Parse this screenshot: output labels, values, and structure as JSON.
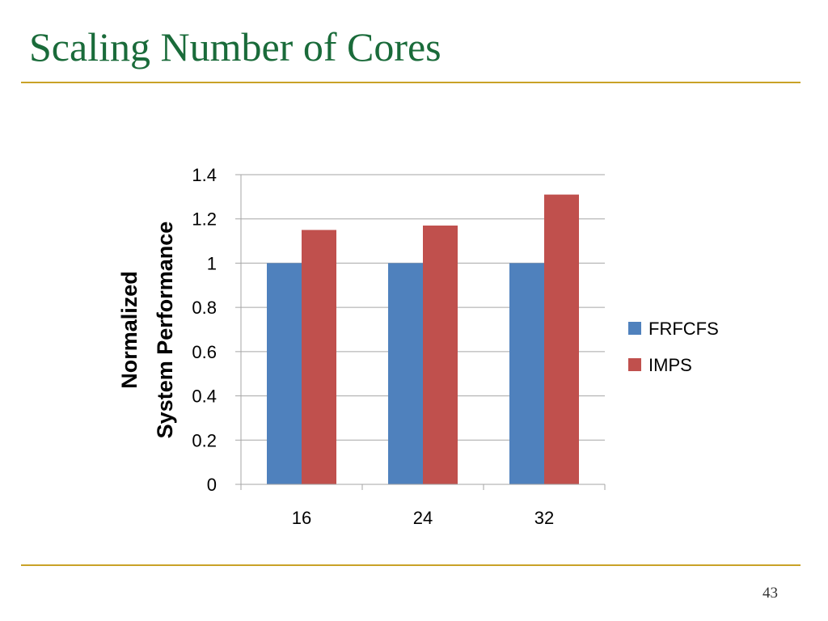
{
  "slide": {
    "title": "Scaling Number of Cores",
    "page_number": "43"
  },
  "colors": {
    "title": "#1a6b3a",
    "rule": "#c9a227",
    "FRFCFS": "#4f81bd",
    "IMPS": "#c0504d",
    "grid": "#a6a6a6"
  },
  "chart_data": {
    "type": "bar",
    "title": "",
    "xlabel": "",
    "ylabel": "Normalized System Performance",
    "ylabel_lines": [
      "Normalized",
      "System Performance"
    ],
    "categories": [
      "16",
      "24",
      "32"
    ],
    "series": [
      {
        "name": "FRFCFS",
        "values": [
          1.0,
          1.0,
          1.0
        ],
        "color": "#4f81bd"
      },
      {
        "name": "IMPS",
        "values": [
          1.15,
          1.17,
          1.31
        ],
        "color": "#c0504d"
      }
    ],
    "ylim": [
      0,
      1.4
    ],
    "yticks": [
      "0",
      "0.2",
      "0.4",
      "0.6",
      "0.8",
      "1",
      "1.2",
      "1.4"
    ],
    "ytick_values": [
      0,
      0.2,
      0.4,
      0.6,
      0.8,
      1.0,
      1.2,
      1.4
    ],
    "grid": true,
    "legend_position": "right"
  }
}
